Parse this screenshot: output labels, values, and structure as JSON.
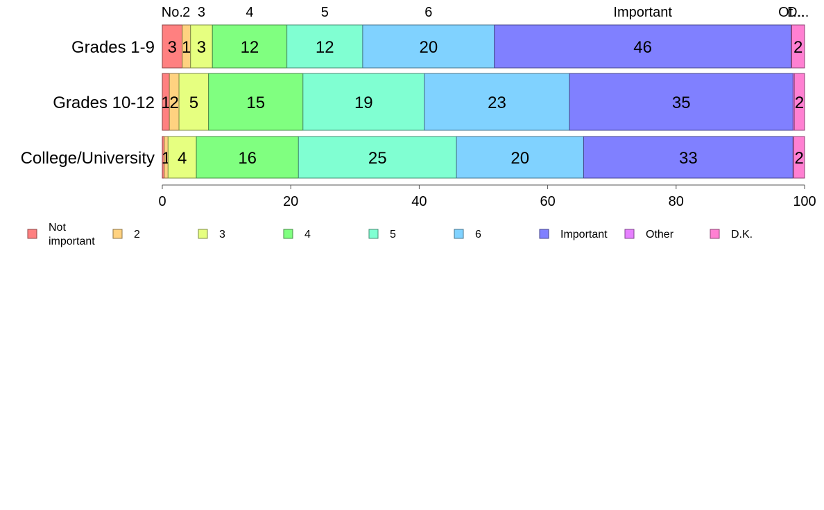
{
  "chart_data": {
    "type": "bar",
    "orientation": "horizontal",
    "stacked": true,
    "categories": [
      "Grades 1-9",
      "Grades 10-12",
      "College/University"
    ],
    "series": [
      {
        "name": "Not important",
        "color": "#ff8080",
        "values": [
          3.1,
          1.1,
          0.3
        ]
      },
      {
        "name": "2",
        "color": "#ffd280",
        "values": [
          1.3,
          1.5,
          0.6
        ]
      },
      {
        "name": "3",
        "color": "#e6ff80",
        "values": [
          3.4,
          4.6,
          4.4
        ]
      },
      {
        "name": "4",
        "color": "#80ff80",
        "values": [
          11.6,
          14.7,
          15.9
        ]
      },
      {
        "name": "5",
        "color": "#80ffd2",
        "values": [
          11.8,
          18.9,
          24.6
        ]
      },
      {
        "name": "6",
        "color": "#80d2ff",
        "values": [
          20.5,
          22.6,
          19.8
        ]
      },
      {
        "name": "Important",
        "color": "#8080ff",
        "values": [
          46.2,
          34.8,
          32.6
        ]
      },
      {
        "name": "Other",
        "color": "#e680ff",
        "values": [
          0.1,
          0.2,
          0.1
        ]
      },
      {
        "name": "D.K.",
        "color": "#ff80d2",
        "values": [
          2.0,
          1.6,
          1.7
        ]
      }
    ],
    "data_labels": [
      [
        "3",
        "1",
        "3",
        "12",
        "12",
        "20",
        "46",
        "",
        "2"
      ],
      [
        "1",
        "2",
        "5",
        "15",
        "19",
        "23",
        "35",
        "",
        "2"
      ],
      [
        "",
        "1",
        "4",
        "16",
        "25",
        "20",
        "33",
        "",
        "2"
      ]
    ],
    "top_labels": [
      "No.",
      "2",
      "3",
      "4",
      "5",
      "6",
      "Important",
      "Ot...",
      "D..."
    ],
    "xlim": [
      0,
      100
    ],
    "xticks": [
      0,
      20,
      40,
      60,
      80,
      100
    ],
    "xlabel": "",
    "ylabel": "",
    "title": "",
    "legend_position": "bottom",
    "legend_labels": [
      "Not\nimportant",
      "2",
      "3",
      "4",
      "5",
      "6",
      "Important",
      "Other",
      "D.K."
    ],
    "grid": false
  }
}
